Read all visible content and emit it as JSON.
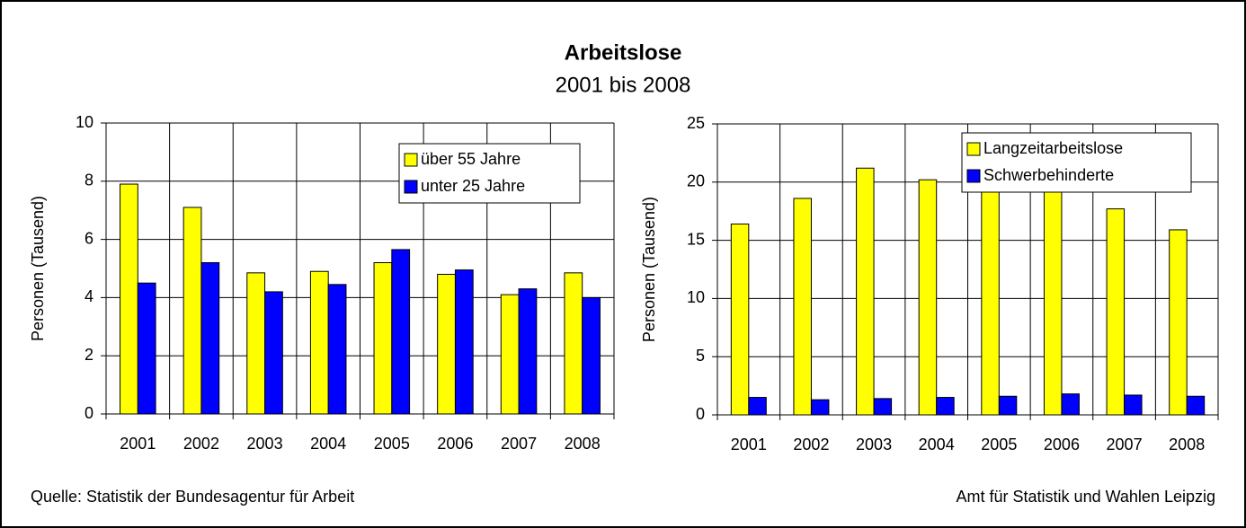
{
  "title": "Arbeitslose",
  "subtitle": "2001 bis 2008",
  "source": "Quelle: Statistik der Bundesagentur für Arbeit",
  "publisher": "Amt für Statistik und Wahlen Leipzig",
  "chart_data": [
    {
      "type": "bar",
      "y_label": "Personen (Tausend)",
      "categories": [
        "2001",
        "2002",
        "2003",
        "2004",
        "2005",
        "2006",
        "2007",
        "2008"
      ],
      "series": [
        {
          "name": "über 55 Jahre",
          "color": "#ffff00",
          "values": [
            7.9,
            7.1,
            4.85,
            4.9,
            5.2,
            4.8,
            4.1,
            4.85
          ]
        },
        {
          "name": "unter 25 Jahre",
          "color": "#0000ff",
          "values": [
            4.5,
            5.2,
            4.2,
            4.45,
            5.65,
            4.95,
            4.3,
            4.0
          ]
        }
      ],
      "ylim": [
        0,
        10
      ],
      "yticks": [
        0,
        2,
        4,
        6,
        8,
        10
      ],
      "grid": true,
      "legend": "upper right"
    },
    {
      "type": "bar",
      "y_label": "Personen (Tausend)",
      "categories": [
        "2001",
        "2002",
        "2003",
        "2004",
        "2005",
        "2006",
        "2007",
        "2008"
      ],
      "series": [
        {
          "name": "Langzeitarbeitslose",
          "color": "#ffff00",
          "values": [
            16.4,
            18.6,
            21.2,
            20.2,
            19.9,
            20.1,
            17.7,
            15.9
          ]
        },
        {
          "name": "Schwerbehinderte",
          "color": "#0000ff",
          "values": [
            1.5,
            1.3,
            1.4,
            1.5,
            1.6,
            1.8,
            1.7,
            1.6
          ]
        }
      ],
      "ylim": [
        0,
        25
      ],
      "yticks": [
        0,
        5,
        10,
        15,
        20,
        25
      ],
      "grid": true,
      "legend": "upper right"
    }
  ]
}
